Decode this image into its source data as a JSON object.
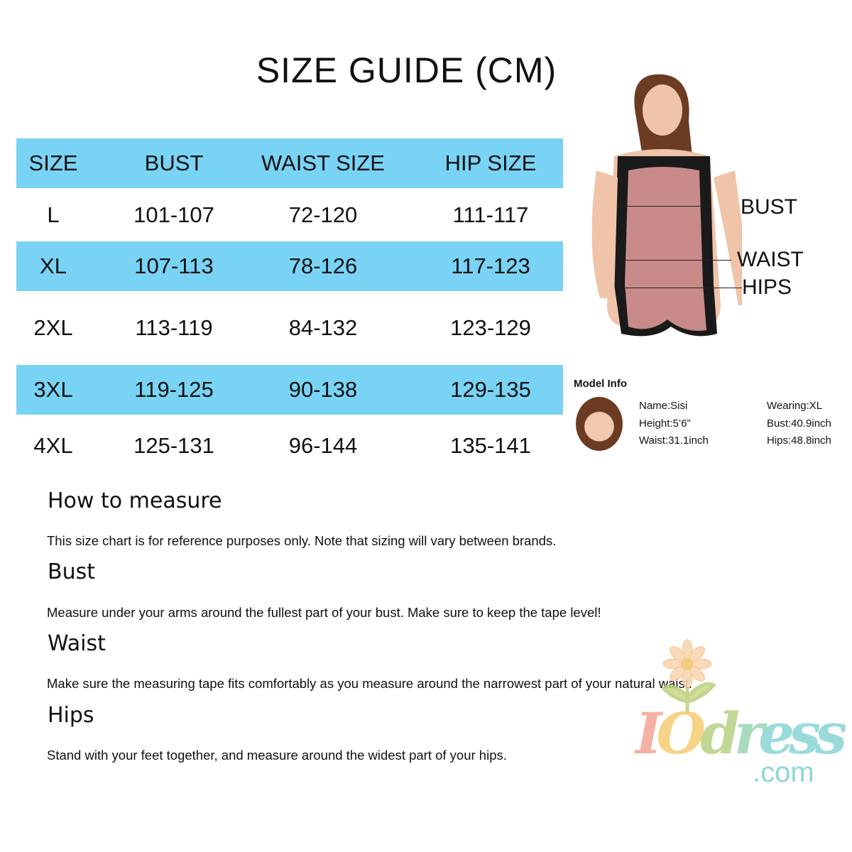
{
  "title": "SIZE GUIDE  (CM)",
  "table": {
    "headers": [
      "SIZE",
      "BUST",
      "WAIST SIZE",
      "HIP SIZE"
    ],
    "rows": [
      [
        "L",
        "101-107",
        "72-120",
        "111-117"
      ],
      [
        "XL",
        "107-113",
        "78-126",
        "117-123"
      ],
      [
        "2XL",
        "113-119",
        "84-132",
        "123-129"
      ],
      [
        "3XL",
        "119-125",
        "90-138",
        "129-135"
      ],
      [
        "4XL",
        "125-131",
        "96-144",
        "135-141"
      ]
    ],
    "accent": "#79d3f5"
  },
  "model_labels": {
    "bust": "BUST",
    "waist": "WAIST",
    "hips": "HIPS"
  },
  "model_info": {
    "title": "Model Info",
    "name": "Name:Sisi",
    "height": "Height:5’6”",
    "waist": "Waist:31.1inch",
    "wearing": "Wearing:XL",
    "bust": "Bust:40.9inch",
    "hips": "Hips:48.8inch"
  },
  "sections": [
    {
      "heading": "How to measure",
      "text": "This size chart is for reference purposes only. Note that sizing will vary between brands."
    },
    {
      "heading": "Bust",
      "text": "Measure under your arms around the fullest part of your bust. Make sure to keep the tape level!"
    },
    {
      "heading": "Waist",
      "text": "Make sure the measuring tape fits comfortably as you measure around the narrowest part of your natural waist."
    },
    {
      "heading": "Hips",
      "text": "Stand with your feet together, and measure around the widest part of your hips."
    }
  ],
  "logo": {
    "text": "IOdress",
    "suffix": ".com"
  }
}
